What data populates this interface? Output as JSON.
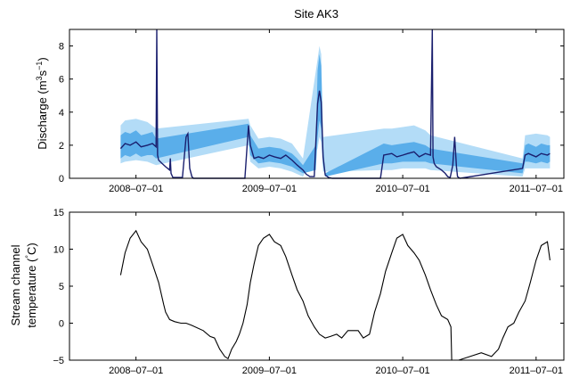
{
  "figure_title": "Site AK3",
  "chart_data": [
    {
      "type": "area",
      "title": "Site AK3",
      "ylabel_main": "Discharge (m",
      "ylabel_sup1": "3",
      "ylabel_mid": "s",
      "ylabel_sup2": "−1",
      "ylabel_end": ")",
      "ylim": [
        0,
        9
      ],
      "yticks": [
        "0",
        "2",
        "4",
        "6",
        "8"
      ],
      "xticks": [
        "2008–07–01",
        "2009–07–01",
        "2010–07–01",
        "2011–07–01"
      ],
      "xlim": [
        "2008-01-01",
        "2011-09-15"
      ],
      "colors": {
        "median": "#1a1f6e",
        "inner_band": "#5aaeea",
        "outer_band": "#b3dcf7"
      },
      "series": [
        {
          "role": "median",
          "x": [
            "2008-05-20",
            "2008-06-01",
            "2008-06-15",
            "2008-07-01",
            "2008-07-15",
            "2008-08-01",
            "2008-08-15",
            "2008-08-25",
            "2008-08-27",
            "2008-08-29",
            "2008-09-01",
            "2008-09-10",
            "2008-09-20",
            "2008-10-01",
            "2008-10-03",
            "2008-10-05",
            "2008-10-10",
            "2008-11-05",
            "2008-11-15",
            "2008-11-20",
            "2008-11-25",
            "2008-12-01",
            "2008-12-05",
            "2009-04-25",
            "2009-05-05",
            "2009-05-10",
            "2009-05-20",
            "2009-06-01",
            "2009-06-15",
            "2009-07-01",
            "2009-07-15",
            "2009-08-01",
            "2009-08-15",
            "2009-09-01",
            "2009-09-15",
            "2009-10-01",
            "2009-10-10",
            "2009-10-20",
            "2009-11-01",
            "2009-11-10",
            "2009-11-15",
            "2009-11-20",
            "2009-11-25",
            "2009-12-01",
            "2009-12-10",
            "2009-12-20",
            "2010-05-01",
            "2010-05-10",
            "2010-06-01",
            "2010-06-15",
            "2010-07-01",
            "2010-07-15",
            "2010-08-01",
            "2010-08-15",
            "2010-09-01",
            "2010-09-15",
            "2010-09-20",
            "2010-09-22",
            "2010-09-25",
            "2010-10-01",
            "2010-10-15",
            "2010-10-25",
            "2010-11-01",
            "2010-11-08",
            "2010-11-15",
            "2010-11-20",
            "2010-11-25",
            "2010-11-28",
            "2010-12-01",
            "2010-12-05",
            "2011-05-25",
            "2011-06-01",
            "2011-06-10",
            "2011-07-01",
            "2011-07-15",
            "2011-08-01",
            "2011-08-08"
          ],
          "y": [
            1.8,
            2.1,
            2.0,
            2.2,
            1.9,
            2.0,
            2.1,
            1.9,
            9.5,
            1.4,
            1.1,
            0.9,
            0.7,
            0.5,
            1.2,
            0.3,
            0.05,
            0.05,
            2.5,
            2.7,
            0.6,
            0.1,
            0,
            0,
            3.2,
            2.0,
            1.2,
            1.3,
            1.2,
            1.4,
            1.3,
            1.2,
            1.4,
            1.1,
            0.8,
            0.5,
            0.25,
            0.1,
            0.1,
            4.5,
            5.3,
            4.6,
            1.3,
            0.2,
            0.05,
            0,
            0,
            1.4,
            1.5,
            1.3,
            1.4,
            1.5,
            1.6,
            1.3,
            1.5,
            1.4,
            9.5,
            1.3,
            0.9,
            0.7,
            0.5,
            0.3,
            0.1,
            0.05,
            0.8,
            2.5,
            0.7,
            0.1,
            0.05,
            0,
            0.6,
            1.4,
            1.5,
            1.3,
            1.5,
            1.4,
            1.5
          ]
        },
        {
          "role": "inner_band",
          "x": [
            "2008-05-20",
            "2008-06-01",
            "2008-06-15",
            "2008-07-01",
            "2008-07-15",
            "2008-08-01",
            "2008-08-15",
            "2008-08-25",
            "2009-05-05",
            "2009-05-10",
            "2009-06-01",
            "2009-07-01",
            "2009-08-01",
            "2009-09-01",
            "2009-09-15",
            "2009-10-01",
            "2009-11-05",
            "2009-11-10",
            "2009-11-15",
            "2009-11-20",
            "2009-11-25",
            "2009-12-01",
            "2010-05-10",
            "2010-06-01",
            "2010-07-01",
            "2010-08-01",
            "2010-09-01",
            "2010-09-15",
            "2011-05-25",
            "2011-06-01",
            "2011-06-10",
            "2011-07-01",
            "2011-07-15",
            "2011-08-01",
            "2011-08-08"
          ],
          "upper": [
            2.6,
            2.8,
            2.7,
            2.9,
            2.6,
            2.7,
            2.8,
            2.4,
            3.3,
            2.6,
            1.8,
            1.9,
            1.8,
            1.5,
            1.2,
            0.8,
            2.0,
            6.5,
            7.5,
            6.8,
            2.0,
            0.3,
            2.1,
            2.0,
            2.1,
            2.2,
            2.0,
            1.8,
            0.9,
            2.0,
            2.1,
            1.9,
            2.1,
            2.0,
            2.0
          ],
          "lower": [
            1.2,
            1.4,
            1.3,
            1.5,
            1.3,
            1.4,
            1.4,
            1.2,
            2.5,
            1.4,
            0.9,
            1.0,
            0.9,
            0.7,
            0.5,
            0.3,
            0.5,
            2.5,
            3.5,
            3.0,
            0.8,
            0.1,
            0.9,
            0.9,
            1.0,
            1.0,
            1.0,
            0.9,
            0.3,
            1.0,
            1.0,
            0.9,
            1.0,
            0.9,
            1.0
          ]
        },
        {
          "role": "outer_band",
          "x": [
            "2008-05-20",
            "2008-06-01",
            "2008-07-01",
            "2008-08-01",
            "2008-08-25",
            "2009-05-05",
            "2009-05-10",
            "2009-06-01",
            "2009-07-01",
            "2009-08-01",
            "2009-09-01",
            "2009-10-01",
            "2009-11-10",
            "2009-11-15",
            "2009-11-20",
            "2009-11-25",
            "2010-05-10",
            "2010-06-01",
            "2010-07-01",
            "2010-08-01",
            "2010-09-01",
            "2010-09-15",
            "2011-05-25",
            "2011-06-01",
            "2011-07-01",
            "2011-08-01",
            "2011-08-08"
          ],
          "upper": [
            3.2,
            3.5,
            3.6,
            3.4,
            3.0,
            3.6,
            3.2,
            2.4,
            2.5,
            2.4,
            2.1,
            1.2,
            7.2,
            8.0,
            7.5,
            2.5,
            3.0,
            3.0,
            3.1,
            3.2,
            2.9,
            2.6,
            1.2,
            2.6,
            2.7,
            2.6,
            2.5
          ],
          "lower": [
            0.9,
            1.0,
            1.1,
            1.0,
            0.8,
            2.0,
            1.0,
            0.6,
            0.7,
            0.6,
            0.4,
            0.1,
            1.8,
            2.5,
            2.2,
            0.4,
            0.5,
            0.5,
            0.6,
            0.6,
            0.6,
            0.5,
            0.1,
            0.6,
            0.6,
            0.6,
            0.6
          ]
        }
      ]
    },
    {
      "type": "line",
      "ylabel_line1": "Stream channel",
      "ylabel_line2_a": "temperature (",
      "ylabel_sup": "°",
      "ylabel_line2_b": "C)",
      "ylim": [
        -5,
        15
      ],
      "yticks": [
        "−5",
        "0",
        "5",
        "10",
        "15"
      ],
      "xticks": [
        "2008–07–01",
        "2009–07–01",
        "2010–07–01",
        "2011–07–01"
      ],
      "xlim": [
        "2008-01-01",
        "2011-09-15"
      ],
      "color": "#000000",
      "series": [
        {
          "x": [
            "2008-05-20",
            "2008-06-01",
            "2008-06-15",
            "2008-07-01",
            "2008-07-15",
            "2008-08-01",
            "2008-08-15",
            "2008-09-01",
            "2008-09-15",
            "2008-09-20",
            "2008-10-01",
            "2008-10-15",
            "2008-11-01",
            "2008-11-15",
            "2008-12-01",
            "2009-01-01",
            "2009-01-20",
            "2009-02-01",
            "2009-02-15",
            "2009-03-01",
            "2009-03-10",
            "2009-03-20",
            "2009-04-01",
            "2009-04-10",
            "2009-04-20",
            "2009-05-01",
            "2009-05-10",
            "2009-05-20",
            "2009-06-01",
            "2009-06-15",
            "2009-07-01",
            "2009-07-15",
            "2009-08-01",
            "2009-08-15",
            "2009-09-01",
            "2009-09-15",
            "2009-10-01",
            "2009-10-15",
            "2009-11-01",
            "2009-11-15",
            "2009-12-01",
            "2009-12-15",
            "2010-01-01",
            "2010-01-15",
            "2010-02-01",
            "2010-02-15",
            "2010-03-01",
            "2010-03-15",
            "2010-04-01",
            "2010-04-15",
            "2010-05-01",
            "2010-05-15",
            "2010-06-01",
            "2010-06-15",
            "2010-07-01",
            "2010-07-15",
            "2010-08-01",
            "2010-08-15",
            "2010-09-01",
            "2010-09-15",
            "2010-10-01",
            "2010-10-15",
            "2010-11-01",
            "2010-11-10",
            "2010-11-12",
            "2010-12-01",
            "2011-01-01",
            "2011-02-01",
            "2011-03-01",
            "2011-03-20",
            "2011-04-01",
            "2011-04-15",
            "2011-05-01",
            "2011-05-15",
            "2011-06-01",
            "2011-06-15",
            "2011-07-01",
            "2011-07-15",
            "2011-08-01",
            "2011-08-08"
          ],
          "y": [
            6.5,
            9.5,
            11.5,
            12.5,
            11.0,
            10.0,
            8.0,
            5.5,
            2.5,
            1.5,
            0.5,
            0.2,
            0,
            0,
            -0.3,
            -1.0,
            -1.8,
            -2.0,
            -3.5,
            -4.5,
            -4.8,
            -3.5,
            -2.5,
            -1.5,
            0,
            2.5,
            5.5,
            8.0,
            10.5,
            11.5,
            12.0,
            11.0,
            10.5,
            9.0,
            6.5,
            4.5,
            3.0,
            1.0,
            -0.5,
            -1.5,
            -2.0,
            -1.8,
            -1.5,
            -2.0,
            -1.0,
            -1.0,
            -1.0,
            -2.0,
            -1.5,
            1.5,
            4.0,
            7.0,
            9.5,
            11.5,
            12.0,
            10.5,
            9.5,
            8.5,
            6.5,
            4.5,
            2.5,
            1.0,
            0.5,
            -0.5,
            -5.0,
            -5.0,
            -4.5,
            -4.0,
            -4.5,
            -3.5,
            -2.0,
            -0.5,
            0,
            1.5,
            3.0,
            5.5,
            8.5,
            10.5,
            11.0,
            8.5
          ]
        }
      ]
    }
  ]
}
